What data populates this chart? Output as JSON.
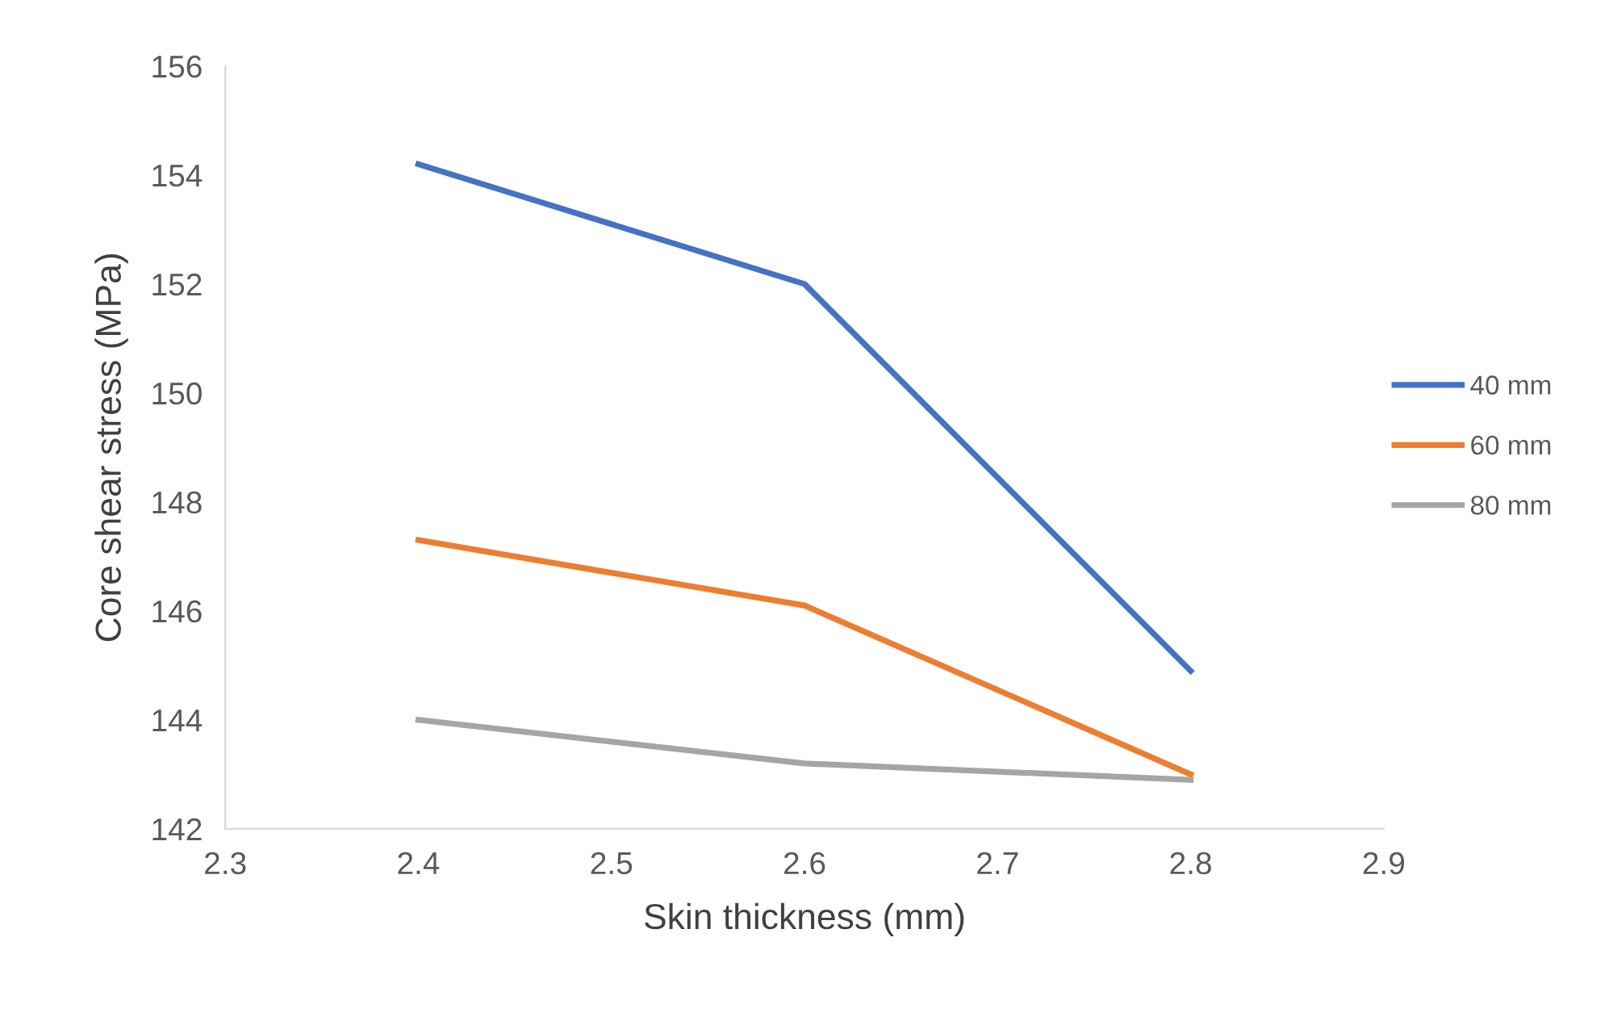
{
  "chart_data": {
    "type": "line",
    "xlabel": "Skin thickness (mm)",
    "ylabel": "Core shear stress (MPa)",
    "x": [
      2.4,
      2.6,
      2.8
    ],
    "series": [
      {
        "name": "40 mm",
        "color": "#4472c4",
        "values": [
          154.2,
          152.0,
          144.9
        ]
      },
      {
        "name": "60 mm",
        "color": "#ed7d31",
        "values": [
          147.3,
          146.1,
          143.0
        ]
      },
      {
        "name": "80 mm",
        "color": "#a5a5a5",
        "values": [
          144.0,
          143.2,
          142.9
        ]
      }
    ],
    "xlim": [
      2.3,
      2.9
    ],
    "xticks": [
      2.3,
      2.4,
      2.5,
      2.6,
      2.7,
      2.8,
      2.9
    ],
    "ylim": [
      142,
      156
    ],
    "yticks": [
      142,
      144,
      146,
      148,
      150,
      152,
      154,
      156
    ],
    "grid": false,
    "legend": "right",
    "marker": "none",
    "line_style": "solid"
  }
}
